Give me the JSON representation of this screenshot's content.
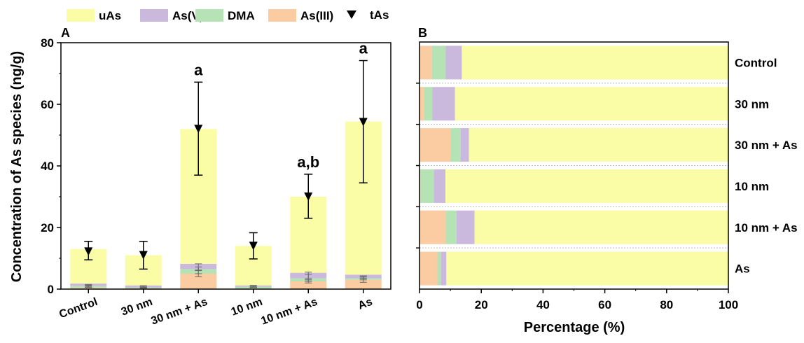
{
  "figure": {
    "colors": {
      "uAs": "#fafda6",
      "As(V)": "#cbb8dd",
      "DMA": "#b5e3b5",
      "As(III)": "#fbcba2",
      "tAs": "#000000"
    },
    "legend": {
      "placement": "top",
      "entries": [
        "uAs",
        "As(V)",
        "DMA",
        "As(III)",
        "tAs"
      ]
    }
  },
  "chart_data": [
    {
      "type": "bar",
      "stacked": true,
      "panel_label": "A",
      "title": "",
      "xlabel": "",
      "ylabel": "Concentration of As species (ng/g)",
      "ylim": [
        0,
        80
      ],
      "yticks": [
        "0",
        "20",
        "40",
        "60",
        "80"
      ],
      "categories": [
        "Control",
        "30 nm",
        "30 nm + As",
        "10 nm",
        "10 nm + As",
        "As"
      ],
      "series": [
        {
          "name": "As(III)",
          "values": [
            0.4,
            0.2,
            5.0,
            0.2,
            2.5,
            3.0
          ]
        },
        {
          "name": "DMA",
          "values": [
            0.6,
            0.3,
            1.5,
            0.6,
            1.0,
            0.5
          ]
        },
        {
          "name": "As(V)",
          "values": [
            0.8,
            0.7,
            1.7,
            0.4,
            1.8,
            1.2
          ]
        },
        {
          "name": "uAs",
          "values": [
            11.2,
            9.8,
            43.8,
            12.8,
            24.7,
            49.7
          ]
        }
      ],
      "component_error": [
        {
          "lower": [
            0.6,
            0.4,
            5.0,
            0.6,
            2.5,
            3.0
          ],
          "upper": [
            1.5,
            1.1,
            8.2,
            1.2,
            5.5,
            4.3
          ]
        },
        {
          "lower": [
            0.5,
            0.3,
            6.2,
            0.5,
            3.0,
            3.5
          ],
          "upper": [
            1.2,
            0.9,
            7.2,
            0.9,
            4.8,
            4.0
          ]
        },
        {
          "lower": [
            0.9,
            0.6,
            4.0,
            0.6,
            2.0,
            2.2
          ],
          "upper": [
            1.3,
            1.0,
            6.0,
            1.0,
            3.4,
            3.6
          ]
        }
      ],
      "tAs": {
        "name": "tAs",
        "values": [
          12.2,
          11.0,
          52.0,
          14.0,
          30.0,
          54.2
        ],
        "error_low": [
          9.5,
          6.5,
          37.0,
          9.8,
          23.0,
          34.5
        ],
        "error_high": [
          15.5,
          15.5,
          67.2,
          18.3,
          37.3,
          74.2
        ]
      },
      "annotations": [
        {
          "category": "30 nm + As",
          "text": "a"
        },
        {
          "category": "10 nm + As",
          "text": "a,b"
        },
        {
          "category": "As",
          "text": "a"
        }
      ]
    },
    {
      "type": "bar",
      "orientation": "horizontal",
      "stacked": true,
      "panel_label": "B",
      "title": "",
      "xlabel": "Percentage (%)",
      "ylabel": "",
      "xlim": [
        0,
        100
      ],
      "xticks": [
        "0",
        "20",
        "40",
        "60",
        "80",
        "100"
      ],
      "categories": [
        "Control",
        "30 nm",
        "30 nm + As",
        "10 nm",
        "10 nm + As",
        "As"
      ],
      "series": [
        {
          "name": "As(III)",
          "values": [
            4.0,
            1.5,
            10.0,
            0.3,
            8.5,
            5.8
          ]
        },
        {
          "name": "DMA",
          "values": [
            4.5,
            2.6,
            3.3,
            4.3,
            3.5,
            1.2
          ]
        },
        {
          "name": "As(V)",
          "values": [
            5.2,
            7.4,
            2.7,
            3.8,
            5.8,
            1.7
          ]
        },
        {
          "name": "uAs",
          "values": [
            86.3,
            88.5,
            84.0,
            91.6,
            82.2,
            91.3
          ]
        }
      ]
    }
  ]
}
